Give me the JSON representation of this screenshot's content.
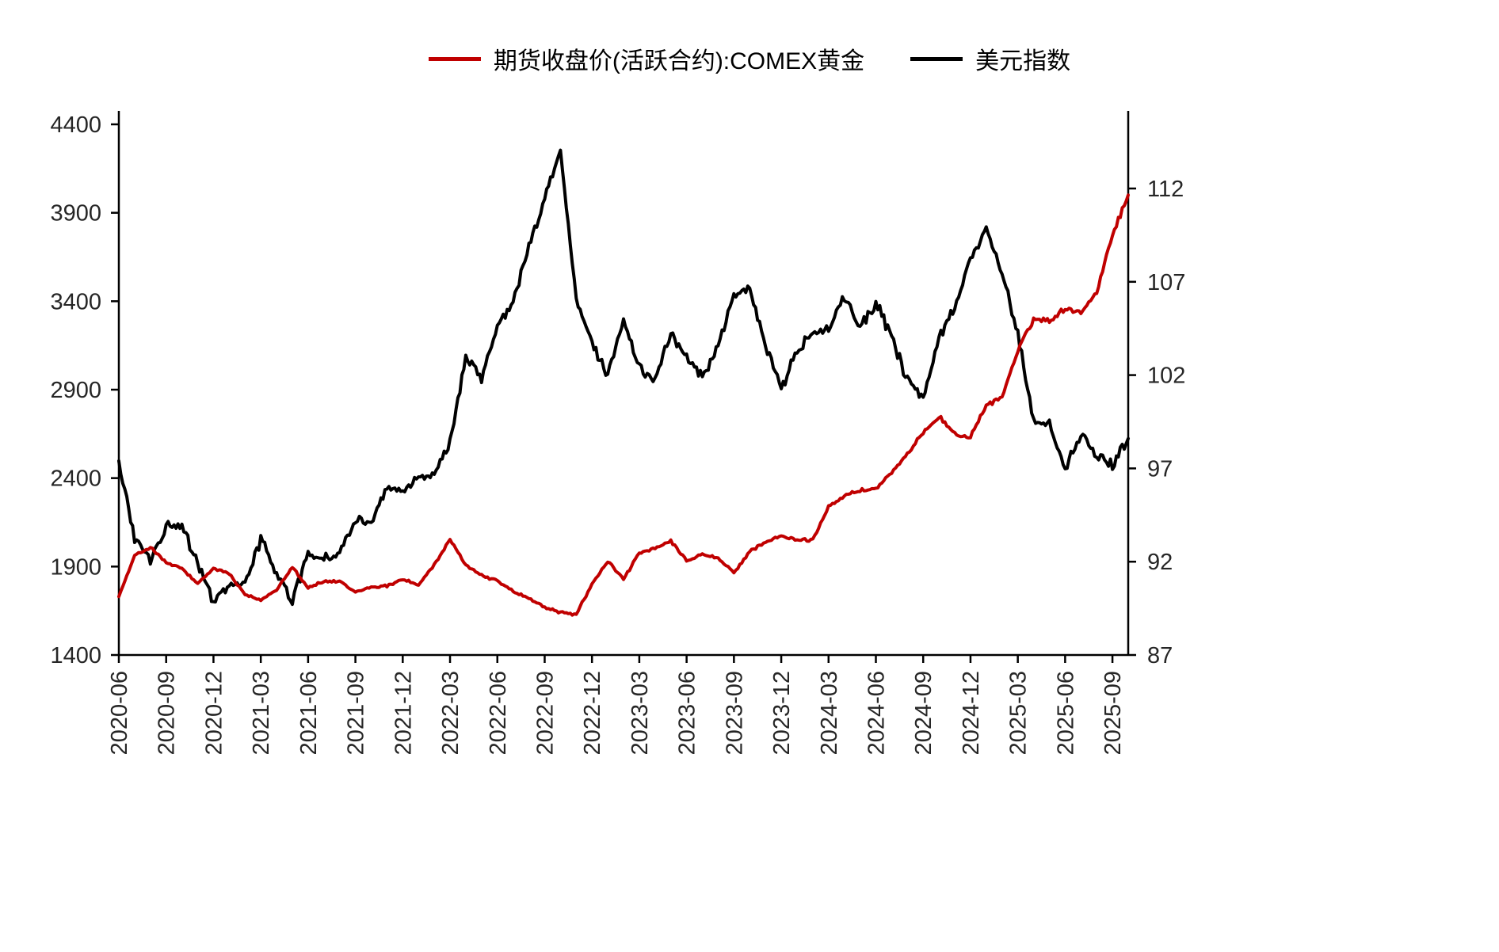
{
  "chart_data": {
    "type": "line",
    "title": "",
    "legend_position": "top-center",
    "grid": false,
    "x_start": "2020-06",
    "x_interval": "monthly",
    "x_tick_labels": [
      "2020-06",
      "2020-09",
      "2020-12",
      "2021-03",
      "2021-06",
      "2021-09",
      "2021-12",
      "2022-03",
      "2022-06",
      "2022-09",
      "2022-12",
      "2023-03",
      "2023-06",
      "2023-09",
      "2023-12",
      "2024-03",
      "2024-06",
      "2024-09",
      "2024-12",
      "2025-03",
      "2025-06",
      "2025-09"
    ],
    "left_axis": {
      "ticks": [
        1400,
        1900,
        2400,
        2900,
        3400,
        3900,
        4400
      ],
      "min": 1400,
      "max": 4400
    },
    "right_axis": {
      "ticks": [
        87,
        92,
        97,
        102,
        107,
        112
      ],
      "min": 87,
      "max": 112
    },
    "series": [
      {
        "name": "期货收盘价(活跃合约):COMEX黄金",
        "color": "#c00000",
        "axis": "left",
        "values": [
          1730,
          1960,
          2010,
          1920,
          1890,
          1800,
          1890,
          1860,
          1740,
          1710,
          1770,
          1900,
          1780,
          1815,
          1815,
          1755,
          1785,
          1790,
          1830,
          1795,
          1910,
          2050,
          1910,
          1850,
          1820,
          1760,
          1720,
          1670,
          1640,
          1630,
          1800,
          1930,
          1830,
          1975,
          2000,
          2045,
          1930,
          1970,
          1945,
          1865,
          1985,
          2040,
          2070,
          2050,
          2050,
          2240,
          2300,
          2330,
          2340,
          2430,
          2530,
          2660,
          2750,
          2650,
          2630,
          2810,
          2860,
          3120,
          3300,
          3290,
          3360,
          3340,
          3450,
          3780,
          4000
        ]
      },
      {
        "name": "美元指数",
        "color": "#000000",
        "axis": "right",
        "values": [
          97.4,
          93.3,
          92.1,
          93.9,
          94.0,
          91.9,
          89.9,
          90.6,
          90.9,
          93.2,
          91.3,
          90.0,
          92.4,
          92.1,
          92.6,
          94.2,
          94.1,
          96.0,
          95.7,
          96.5,
          96.7,
          98.3,
          103.0,
          101.8,
          104.7,
          105.9,
          108.8,
          111.5,
          114.0,
          106.0,
          103.8,
          102.0,
          104.9,
          102.5,
          101.7,
          104.3,
          102.9,
          101.9,
          103.6,
          106.2,
          106.7,
          103.5,
          101.3,
          103.3,
          104.2,
          104.5,
          106.2,
          104.6,
          105.9,
          104.1,
          101.7,
          100.8,
          104.0,
          105.7,
          108.3,
          109.8,
          107.5,
          104.2,
          99.5,
          99.4,
          96.9,
          98.9,
          97.8,
          97.2,
          98.6
        ]
      }
    ]
  }
}
